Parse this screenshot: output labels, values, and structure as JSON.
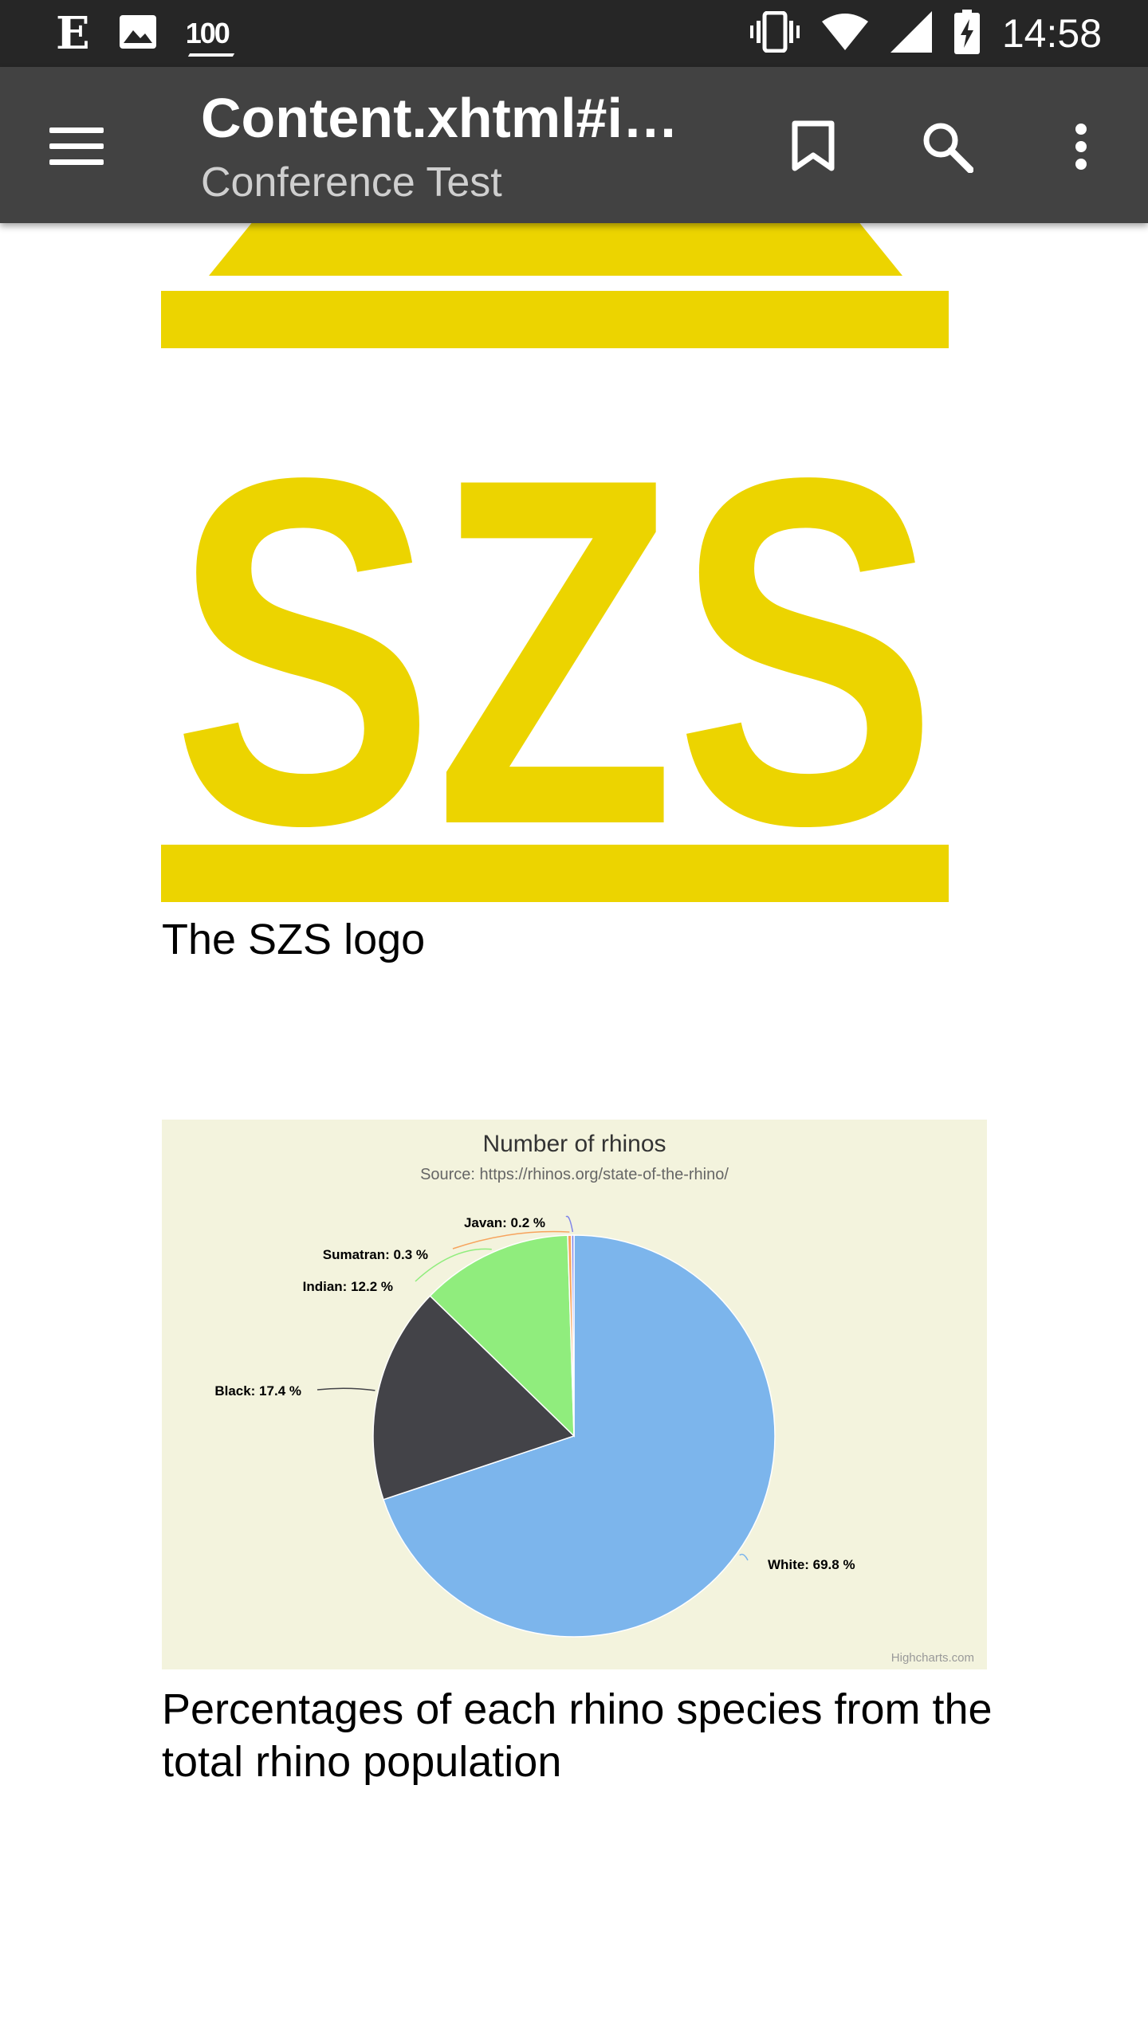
{
  "status_bar": {
    "app_icon_letter": "E",
    "notification_badge": "100",
    "time": "14:58",
    "icons": [
      "e-app-icon",
      "image-icon",
      "badge-100-icon",
      "vibrate-icon",
      "wifi-icon",
      "cell-signal-icon",
      "battery-charging-icon"
    ]
  },
  "toolbar": {
    "title": "Content.xhtml#imp…",
    "subtitle": "Conference Test",
    "icons": [
      "menu-icon",
      "bookmark-icon",
      "search-icon",
      "more-vert-icon"
    ]
  },
  "figures": [
    {
      "image": "SZS logo",
      "logo_text": "SZS",
      "logo_color": "#ecd400",
      "caption": "The SZS logo"
    },
    {
      "caption": "Percentages of each rhino species from the total rhino population"
    }
  ],
  "chart_data": {
    "type": "pie",
    "title": "Number of rhinos",
    "subtitle": "Source: https://rhinos.org/state-of-the-rhino/",
    "credits": "Highcharts.com",
    "background": "#f3f3dd",
    "series": [
      {
        "slices": [
          {
            "name": "White",
            "value": 69.8,
            "label": "White: 69.8 %",
            "color": "#7cb5ec"
          },
          {
            "name": "Black",
            "value": 17.4,
            "label": "Black: 17.4 %",
            "color": "#434348"
          },
          {
            "name": "Indian",
            "value": 12.2,
            "label": "Indian: 12.2 %",
            "color": "#90ed7d"
          },
          {
            "name": "Sumatran",
            "value": 0.3,
            "label": "Sumatran: 0.3 %",
            "color": "#f7a35c"
          },
          {
            "name": "Javan",
            "value": 0.2,
            "label": "Javan: 0.2 %",
            "color": "#8085e9"
          }
        ]
      }
    ]
  }
}
